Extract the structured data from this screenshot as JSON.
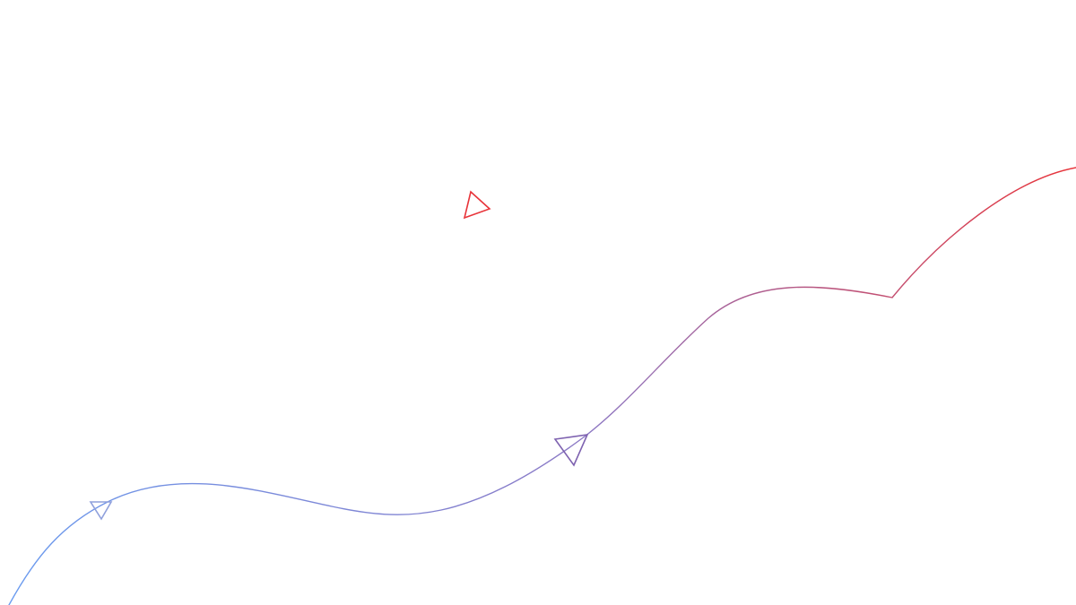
{
  "colors": {
    "gradient_start": "#6a9cf0",
    "gradient_mid": "#8c78c4",
    "gradient_end": "#e8343a",
    "arrow_small": "#8fa0dc",
    "arrow_large": "#7e62b0",
    "arrow_floating": "#e8343a"
  },
  "icons": {
    "arrow_1": "triangle-arrow-icon",
    "arrow_2": "triangle-arrow-icon",
    "arrow_3": "triangle-arrow-icon"
  }
}
